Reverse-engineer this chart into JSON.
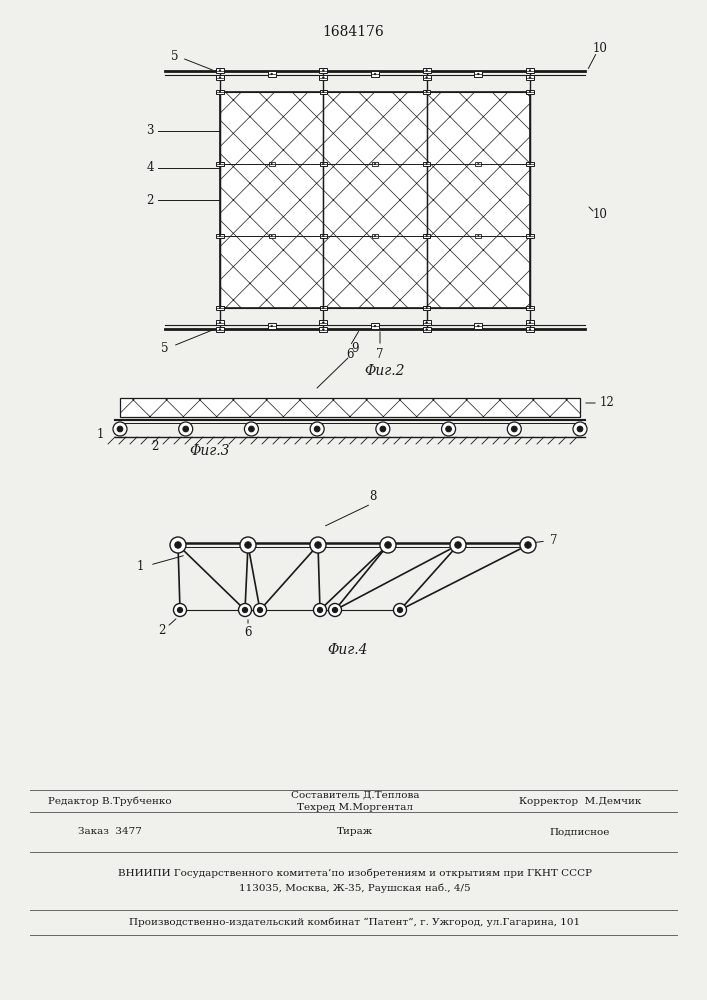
{
  "bg_color": "#f0f0ec",
  "title": "1684176",
  "fig2_caption": "Φиг.2",
  "fig3_caption": "Φиг.3",
  "fig4_caption": "Φиг.4",
  "line_color": "#1a1a1a",
  "footer": {
    "row1_left": "Редактор В.Трубченко",
    "row1_c1": "Составитель Д.Теплова",
    "row1_c2": "Техред М.Моргентал",
    "row1_right": "Корректор  М.Демчик",
    "row2_left": "Заказ  3477",
    "row2_center": "Тираж",
    "row2_right": "Подписное",
    "row3": "ВНИИПИ Государственного комитета’по изобретениям и открытиям при ГКНТ СССР",
    "row4": "113035, Москва, Ж-35, Раушская наб., 4/5",
    "row5": "Производственно-издательский комбинат “Патент”, г. Ужгород, ул.Гагарина, 101"
  }
}
